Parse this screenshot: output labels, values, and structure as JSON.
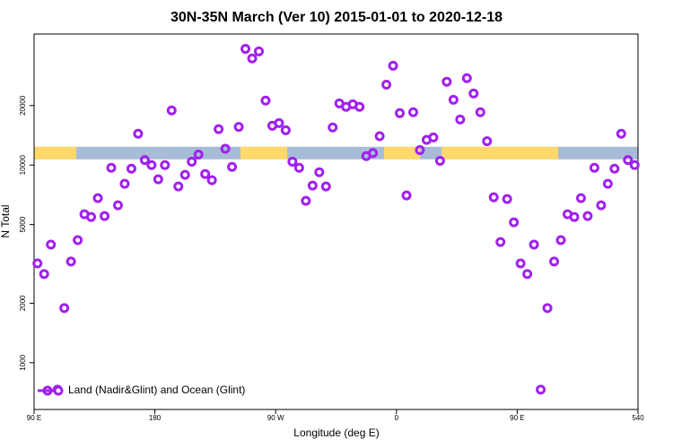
{
  "chart_data": {
    "type": "scatter",
    "title": "30N-35N March (Ver 10)   2015-01-01 to 2020-12-18",
    "x_label": "Longitude (deg E)",
    "y_label": "N Total",
    "log_y": true,
    "legend": "bottom-left",
    "xlim": [
      90,
      540
    ],
    "xticks": [
      {
        "value": 90,
        "label": "90 E"
      },
      180,
      {
        "value": 270,
        "label": "90 W"
      },
      {
        "value": 360,
        "label": "0"
      },
      {
        "value": 450,
        "label": "90 E"
      },
      540
    ],
    "ylim": [
      580,
      46000
    ],
    "yticks": [
      1000,
      2000,
      5000,
      10000,
      20000
    ],
    "strip": {
      "value": 11500,
      "land_color": "#ffd96b",
      "ocean_color": "#a8bcd8",
      "land": [
        [
          90,
          121.4
        ],
        [
          243.8,
          278.6
        ],
        [
          350.8,
          377.5
        ],
        [
          393.6,
          480.5
        ]
      ]
    },
    "series": [
      {
        "name": "Land (Nadir&Glint) and Ocean (Glint)",
        "color": "#a020f0",
        "x": [
          92.5,
          97.5,
          102.5,
          107.5,
          112.5,
          117.5,
          122.5,
          127.5,
          132.5,
          137.5,
          142.5,
          147.5,
          152.5,
          157.5,
          162.5,
          167.5,
          172.5,
          177.5,
          182.5,
          187.5,
          192.5,
          197.5,
          202.5,
          207.5,
          212.5,
          217.5,
          222.5,
          227.5,
          232.5,
          237.5,
          242.5,
          247.5,
          252.5,
          257.5,
          262.5,
          267.5,
          272.5,
          277.5,
          282.5,
          287.5,
          292.5,
          297.5,
          302.5,
          307.5,
          312.5,
          317.5,
          322.5,
          327.5,
          332.5,
          337.5,
          342.5,
          347.5,
          352.5,
          357.5,
          362.5,
          367.5,
          372.5,
          377.5,
          382.5,
          387.5,
          392.5,
          397.5,
          402.5,
          407.5,
          412.5,
          417.5,
          422.5,
          427.5,
          432.5,
          437.5,
          442.5,
          447.5,
          452.5,
          457.5,
          462.5,
          467.5,
          472.5,
          477.5,
          482.5,
          487.5,
          492.5,
          497.5,
          502.5,
          507.5,
          512.5,
          517.5,
          522.5,
          527.5,
          532.5,
          537.5
        ],
        "values": [
          3180,
          2810,
          3960,
          731,
          1890,
          3250,
          4170,
          5640,
          5460,
          6800,
          5520,
          9690,
          6260,
          8040,
          9590,
          14400,
          10600,
          10000,
          8470,
          10000,
          18900,
          7790,
          8920,
          10400,
          11300,
          9010,
          8380,
          15200,
          12100,
          9790,
          15600,
          38700,
          34600,
          37600,
          21200,
          15800,
          16300,
          15000,
          10400,
          9690,
          6590,
          7870,
          9200,
          7790,
          15500,
          20500,
          19700,
          20300,
          19700,
          11100,
          11500,
          14000,
          25500,
          31800,
          18300,
          7020,
          18500,
          11900,
          13400,
          13800,
          10500,
          26400,
          21400,
          17000,
          27500,
          23000,
          18500,
          13200,
          6870,
          4080,
          6730,
          5130,
          3180,
          2810,
          3960,
          731,
          1890,
          3250,
          4170,
          5640,
          5460,
          6800,
          5520,
          9690,
          6260,
          8040,
          9590,
          14400,
          10600,
          10000
        ]
      }
    ]
  }
}
